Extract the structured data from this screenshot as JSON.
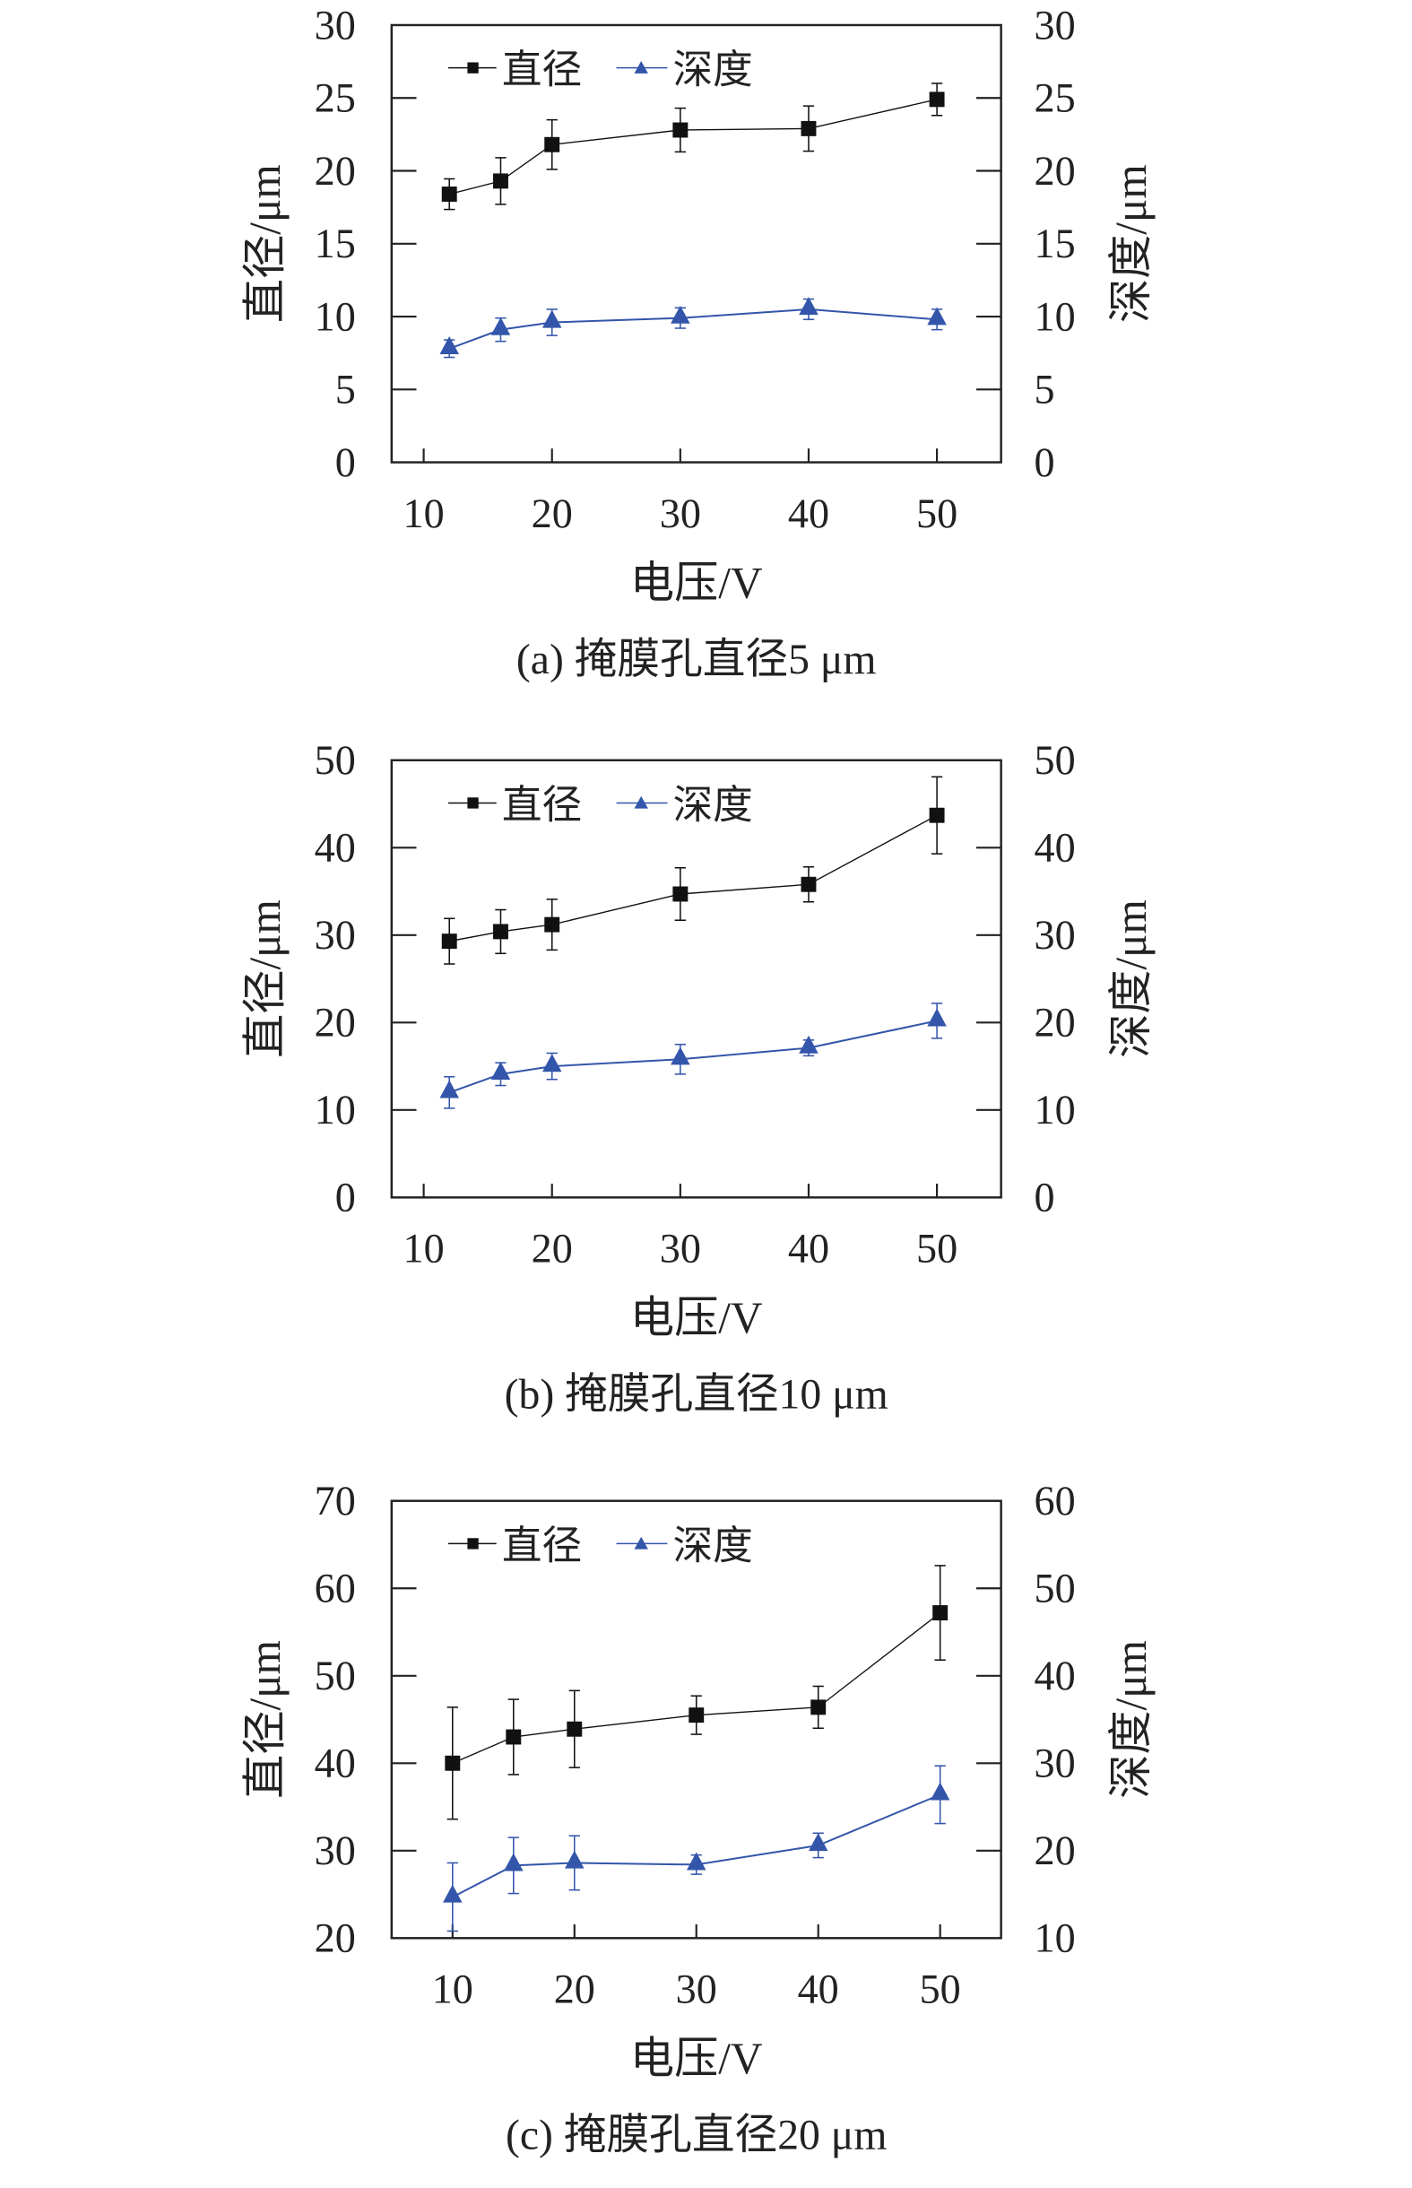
{
  "colors": {
    "diameter": "#111111",
    "depth": "#3355aa",
    "axis": "#222222"
  },
  "chart_data": [
    {
      "type": "line",
      "caption": "(a) 掩膜孔直径5 μm",
      "xlabel": "电压/V",
      "ylabel_left": "直径/μm",
      "ylabel_right": "深度/μm",
      "xlim": [
        7.5,
        55
      ],
      "xticks": [
        10,
        20,
        30,
        40,
        50
      ],
      "ylim_left": [
        0,
        30
      ],
      "yticks_left": [
        0,
        5,
        10,
        15,
        20,
        25,
        30
      ],
      "ylim_right": [
        0,
        30
      ],
      "yticks_right": [
        0,
        5,
        10,
        15,
        20,
        25,
        30
      ],
      "legend": [
        "直径",
        "深度"
      ],
      "legend_position": "top-left",
      "series": [
        {
          "name": "直径",
          "axis": "left",
          "marker": "square",
          "x": [
            12,
            16,
            20,
            30,
            40,
            50
          ],
          "y": [
            18.4,
            19.3,
            21.8,
            22.8,
            22.9,
            24.9
          ],
          "err": [
            1.05,
            1.6,
            1.7,
            1.5,
            1.55,
            1.1
          ]
        },
        {
          "name": "深度",
          "axis": "right",
          "marker": "triangle",
          "x": [
            12,
            16,
            20,
            30,
            40,
            50
          ],
          "y": [
            7.8,
            9.1,
            9.6,
            9.9,
            10.5,
            9.8
          ],
          "err": [
            0.6,
            0.8,
            0.9,
            0.7,
            0.7,
            0.7
          ]
        }
      ]
    },
    {
      "type": "line",
      "caption": "(b) 掩膜孔直径10 μm",
      "xlabel": "电压/V",
      "ylabel_left": "直径/μm",
      "ylabel_right": "深度/μm",
      "xlim": [
        7.5,
        55
      ],
      "xticks": [
        10,
        20,
        30,
        40,
        50
      ],
      "ylim_left": [
        0,
        50
      ],
      "yticks_left": [
        0,
        10,
        20,
        30,
        40,
        50
      ],
      "ylim_right": [
        0,
        50
      ],
      "yticks_right": [
        0,
        10,
        20,
        30,
        40,
        50
      ],
      "legend": [
        "直径",
        "深度"
      ],
      "legend_position": "top-left",
      "series": [
        {
          "name": "直径",
          "axis": "left",
          "marker": "square",
          "x": [
            12,
            16,
            20,
            30,
            40,
            50
          ],
          "y": [
            29.3,
            30.4,
            31.2,
            34.7,
            35.8,
            43.7
          ],
          "err": [
            2.6,
            2.5,
            2.9,
            3.0,
            2.0,
            4.4
          ]
        },
        {
          "name": "深度",
          "axis": "right",
          "marker": "triangle",
          "x": [
            12,
            16,
            20,
            30,
            40,
            50
          ],
          "y": [
            12.0,
            14.1,
            15.0,
            15.8,
            17.1,
            20.2
          ],
          "err": [
            1.8,
            1.3,
            1.5,
            1.7,
            0.9,
            2.0
          ]
        }
      ]
    },
    {
      "type": "line",
      "caption": "(c) 掩膜孔直径20 μm",
      "xlabel": "电压/V",
      "ylabel_left": "直径/μm",
      "ylabel_right": "深度/μm",
      "xlim": [
        5,
        55
      ],
      "xticks": [
        10,
        20,
        30,
        40,
        50
      ],
      "ylim_left": [
        20,
        70
      ],
      "yticks_left": [
        20,
        30,
        40,
        50,
        60,
        70
      ],
      "ylim_right": [
        10,
        60
      ],
      "yticks_right": [
        10,
        20,
        30,
        40,
        50,
        60
      ],
      "legend": [
        "直径",
        "深度"
      ],
      "legend_position": "top-left",
      "series": [
        {
          "name": "直径",
          "axis": "left",
          "marker": "square",
          "x": [
            10,
            15,
            20,
            30,
            40,
            50
          ],
          "y": [
            40.0,
            43.0,
            43.9,
            45.5,
            46.4,
            57.2
          ],
          "err": [
            6.4,
            4.3,
            4.4,
            2.2,
            2.4,
            5.4
          ]
        },
        {
          "name": "深度",
          "axis": "right",
          "marker": "triangle",
          "x": [
            10,
            15,
            20,
            30,
            40,
            50
          ],
          "y": [
            14.7,
            18.3,
            18.6,
            18.4,
            20.6,
            26.4
          ],
          "err": [
            3.9,
            3.2,
            3.1,
            1.1,
            1.4,
            3.3
          ]
        }
      ]
    }
  ]
}
